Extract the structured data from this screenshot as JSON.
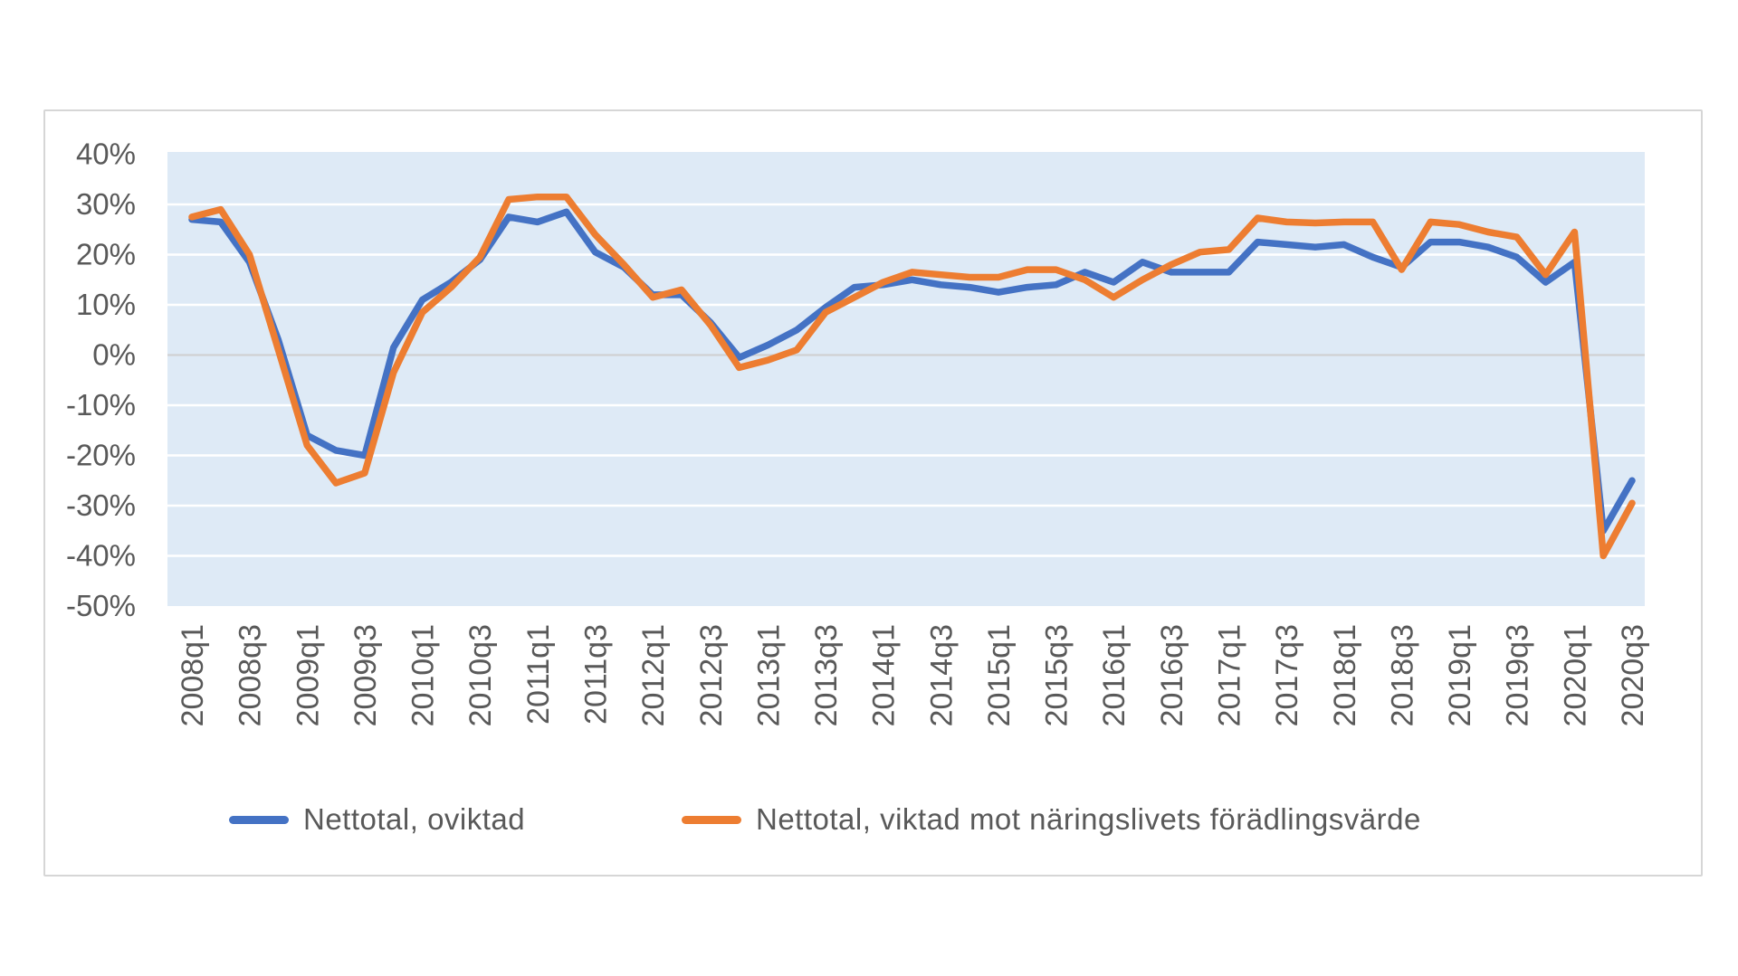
{
  "panel": {
    "background": "#FFFFFF",
    "border_color": "#D6D6D6"
  },
  "chart_data": {
    "type": "line",
    "title": "",
    "xlabel": "",
    "ylabel": "",
    "ylim": [
      -50,
      40
    ],
    "y_tick_step": 10,
    "y_tick_labels": [
      "40%",
      "30%",
      "20%",
      "10%",
      "0%",
      "-10%",
      "-20%",
      "-30%",
      "-40%",
      "-50%"
    ],
    "y_tick_values": [
      40,
      30,
      20,
      10,
      0,
      -10,
      -20,
      -30,
      -40,
      -50
    ],
    "grid": "horizontal",
    "grid_color": "#FFFFFF",
    "zero_line_color": "#CFCFCF",
    "plot_bg": "#DEEAF6",
    "axis_text_color": "#595959",
    "legend_position": "bottom",
    "x": [
      "2008q1",
      "2008q2",
      "2008q3",
      "2008q4",
      "2009q1",
      "2009q2",
      "2009q3",
      "2009q4",
      "2010q1",
      "2010q2",
      "2010q3",
      "2010q4",
      "2011q1",
      "2011q2",
      "2011q3",
      "2011q4",
      "2012q1",
      "2012q2",
      "2012q3",
      "2012q4",
      "2013q1",
      "2013q2",
      "2013q3",
      "2013q4",
      "2014q1",
      "2014q2",
      "2014q3",
      "2014q4",
      "2015q1",
      "2015q2",
      "2015q3",
      "2015q4",
      "2016q1",
      "2016q2",
      "2016q3",
      "2016q4",
      "2017q1",
      "2017q2",
      "2017q3",
      "2017q4",
      "2018q1",
      "2018q2",
      "2018q3",
      "2018q4",
      "2019q1",
      "2019q2",
      "2019q3",
      "2019q4",
      "2020q1",
      "2020q2",
      "2020q3"
    ],
    "x_tick_every": 2,
    "series": [
      {
        "name": "Nettotal, oviktad",
        "color": "#4472C4",
        "values": [
          27,
          26.5,
          18.5,
          3,
          -16,
          -19,
          -20,
          1.5,
          11,
          14.5,
          19,
          27.5,
          26.5,
          28.5,
          20.5,
          17.5,
          12,
          12,
          6.5,
          -0.5,
          2,
          5,
          9.5,
          13.5,
          14,
          15,
          14,
          13.5,
          12.5,
          13.5,
          14,
          16.5,
          14.5,
          18.5,
          16.5,
          16.5,
          16.5,
          22.5,
          22,
          21.5,
          22,
          19.5,
          17.5,
          22.5,
          22.5,
          21.5,
          19.5,
          14.5,
          18.5,
          -35,
          -25
        ]
      },
      {
        "name": "Nettotal, viktad mot näringslivets förädlingsvärde",
        "color": "#ED7D31",
        "values": [
          27.5,
          29,
          20,
          1,
          -18,
          -25.5,
          -23.5,
          -3.5,
          8.5,
          13.5,
          19.5,
          31,
          31.5,
          31.5,
          24,
          18,
          11.5,
          13,
          6,
          -2.5,
          -1,
          1,
          8.5,
          11.5,
          14.5,
          16.5,
          16,
          15.5,
          15.5,
          17,
          17,
          15,
          11.5,
          15,
          18,
          20.5,
          21,
          27.3,
          26.5,
          26.3,
          26.5,
          26.5,
          17,
          26.5,
          26,
          24.5,
          23.5,
          16,
          24.5,
          -40,
          -29.5
        ]
      }
    ]
  },
  "legend": {
    "items": [
      {
        "label": "Nettotal, oviktad",
        "color": "#4472C4"
      },
      {
        "label": "Nettotal, viktad mot näringslivets förädlingsvärde",
        "color": "#ED7D31"
      }
    ]
  }
}
